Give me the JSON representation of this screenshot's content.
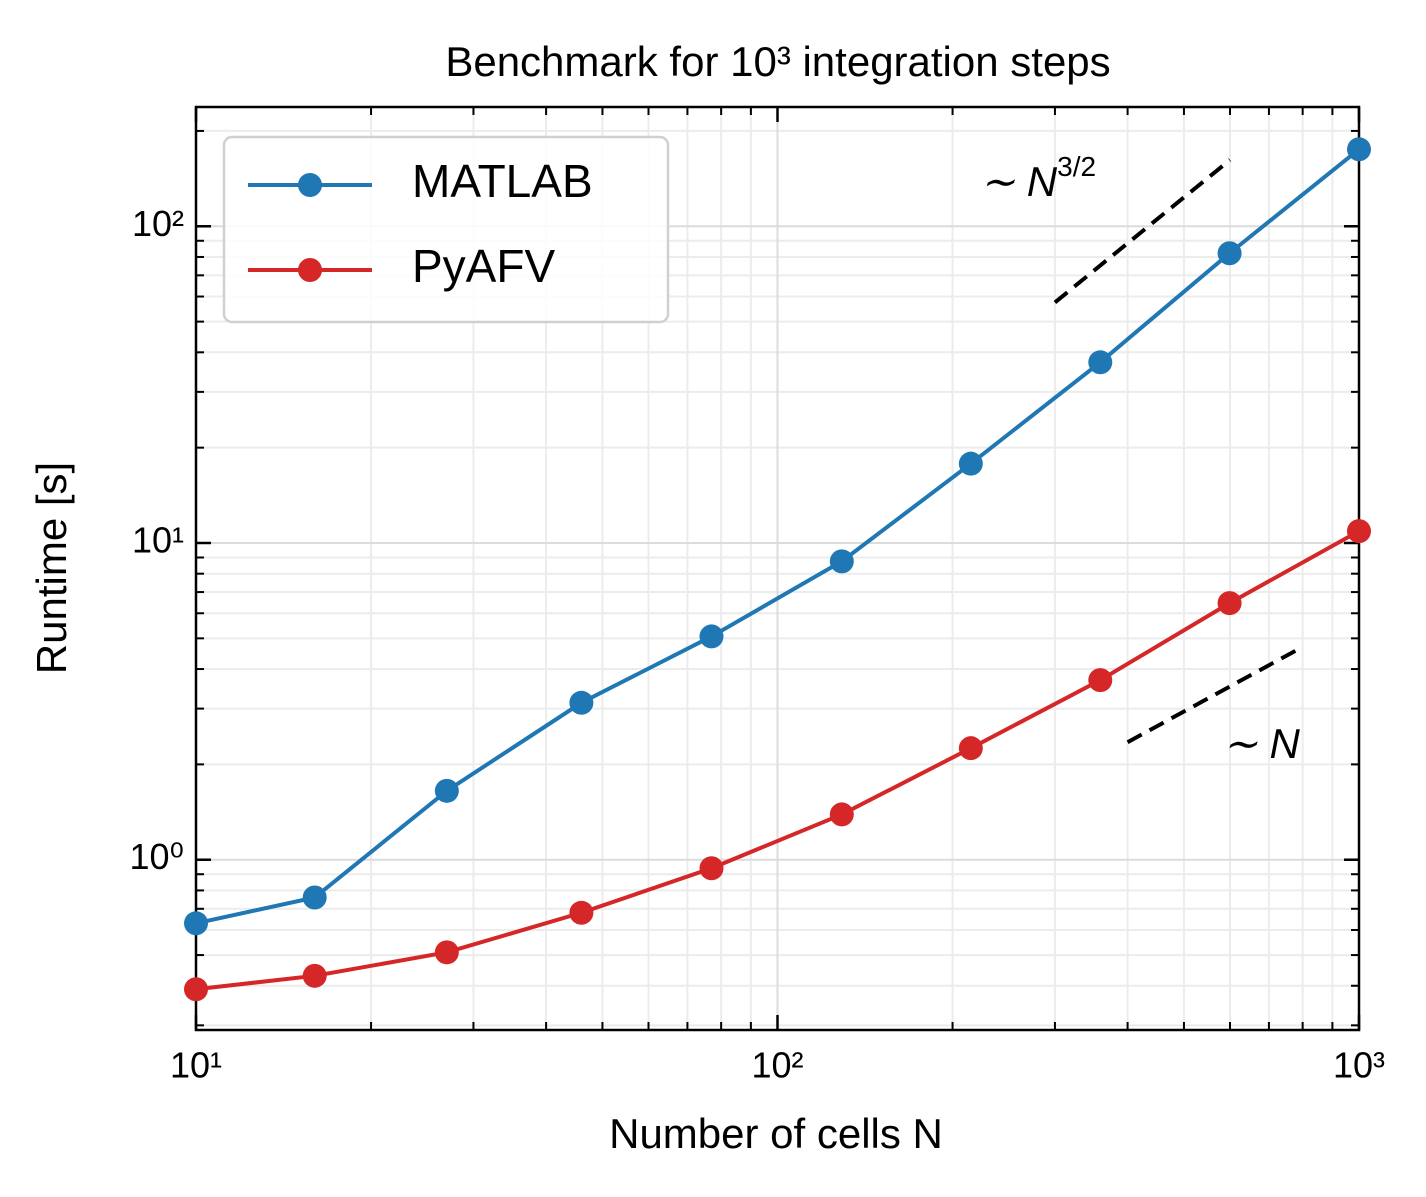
{
  "chart_data": {
    "type": "line",
    "title": "Benchmark for 10³ integration steps",
    "x_label": "Number of cells N",
    "y_label": "Runtime [s]",
    "x": [
      10,
      16,
      27,
      46,
      77,
      129,
      215,
      359,
      599,
      1000
    ],
    "series": [
      {
        "name": "MATLAB",
        "color": "#1f77b4",
        "values": [
          0.63,
          0.76,
          1.65,
          3.13,
          5.07,
          8.75,
          17.8,
          37.2,
          82.2,
          175
        ]
      },
      {
        "name": "PyAFV",
        "color": "#d62728",
        "values": [
          0.39,
          0.43,
          0.51,
          0.68,
          0.94,
          1.39,
          2.25,
          3.69,
          6.46,
          10.9
        ]
      }
    ],
    "xlim": [
      10,
      1000
    ],
    "ylim": [
      0.29,
      238
    ],
    "log_x": true,
    "log_y": true,
    "xticks": [
      {
        "value": 10,
        "label": "10¹"
      },
      {
        "value": 100,
        "label": "10²"
      },
      {
        "value": 1000,
        "label": "10³"
      }
    ],
    "yticks": [
      {
        "value": 1,
        "label": "10⁰"
      },
      {
        "value": 10,
        "label": "10¹"
      },
      {
        "value": 100,
        "label": "10²"
      }
    ],
    "xminor": [
      20,
      30,
      40,
      50,
      60,
      70,
      80,
      90,
      200,
      300,
      400,
      500,
      600,
      700,
      800,
      900
    ],
    "yminor": [
      0.3,
      0.4,
      0.5,
      0.6,
      0.7,
      0.8,
      0.9,
      2,
      3,
      4,
      5,
      6,
      7,
      8,
      9,
      20,
      30,
      40,
      50,
      60,
      70,
      80,
      90,
      200
    ],
    "grid": true,
    "legend": "upper left",
    "reference_lines": [
      {
        "label": "∼ N",
        "exponent": "3/2",
        "x": [
          300,
          600
        ],
        "y": [
          57.5,
          162
        ]
      },
      {
        "label": "∼ N",
        "x": [
          400,
          800
        ],
        "y": [
          2.35,
          4.7
        ]
      }
    ]
  }
}
